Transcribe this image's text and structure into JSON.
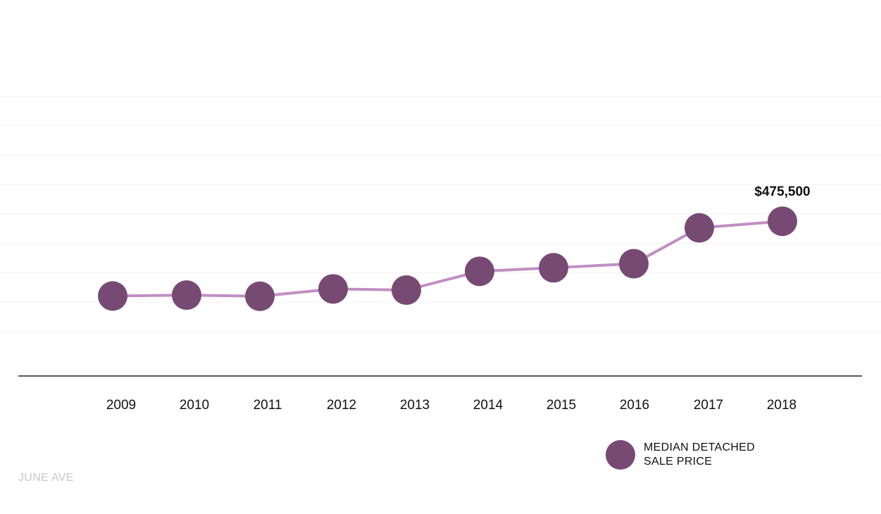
{
  "chart_data": {
    "type": "line",
    "categories": [
      "2009",
      "2010",
      "2011",
      "2012",
      "2013",
      "2014",
      "2015",
      "2016",
      "2017",
      "2018"
    ],
    "series": [
      {
        "name": "MEDIAN DETACHED SALE PRICE",
        "values": [
          221000,
          224000,
          220000,
          245000,
          241000,
          305000,
          317000,
          331000,
          453000,
          475500
        ]
      }
    ],
    "data_labels": [
      {
        "index": 9,
        "text": "$475,500"
      }
    ],
    "ylim": [
      0,
      1000000
    ],
    "grid": true,
    "legend_position": "bottom-right",
    "colors": {
      "line": "#c08fc2",
      "marker": "#764a73",
      "gridline": "#f2f2f2",
      "axis": "#222222"
    }
  },
  "legend": {
    "label": "MEDIAN DETACHED\nSALE PRICE"
  },
  "watermark": "JUNE AVE"
}
